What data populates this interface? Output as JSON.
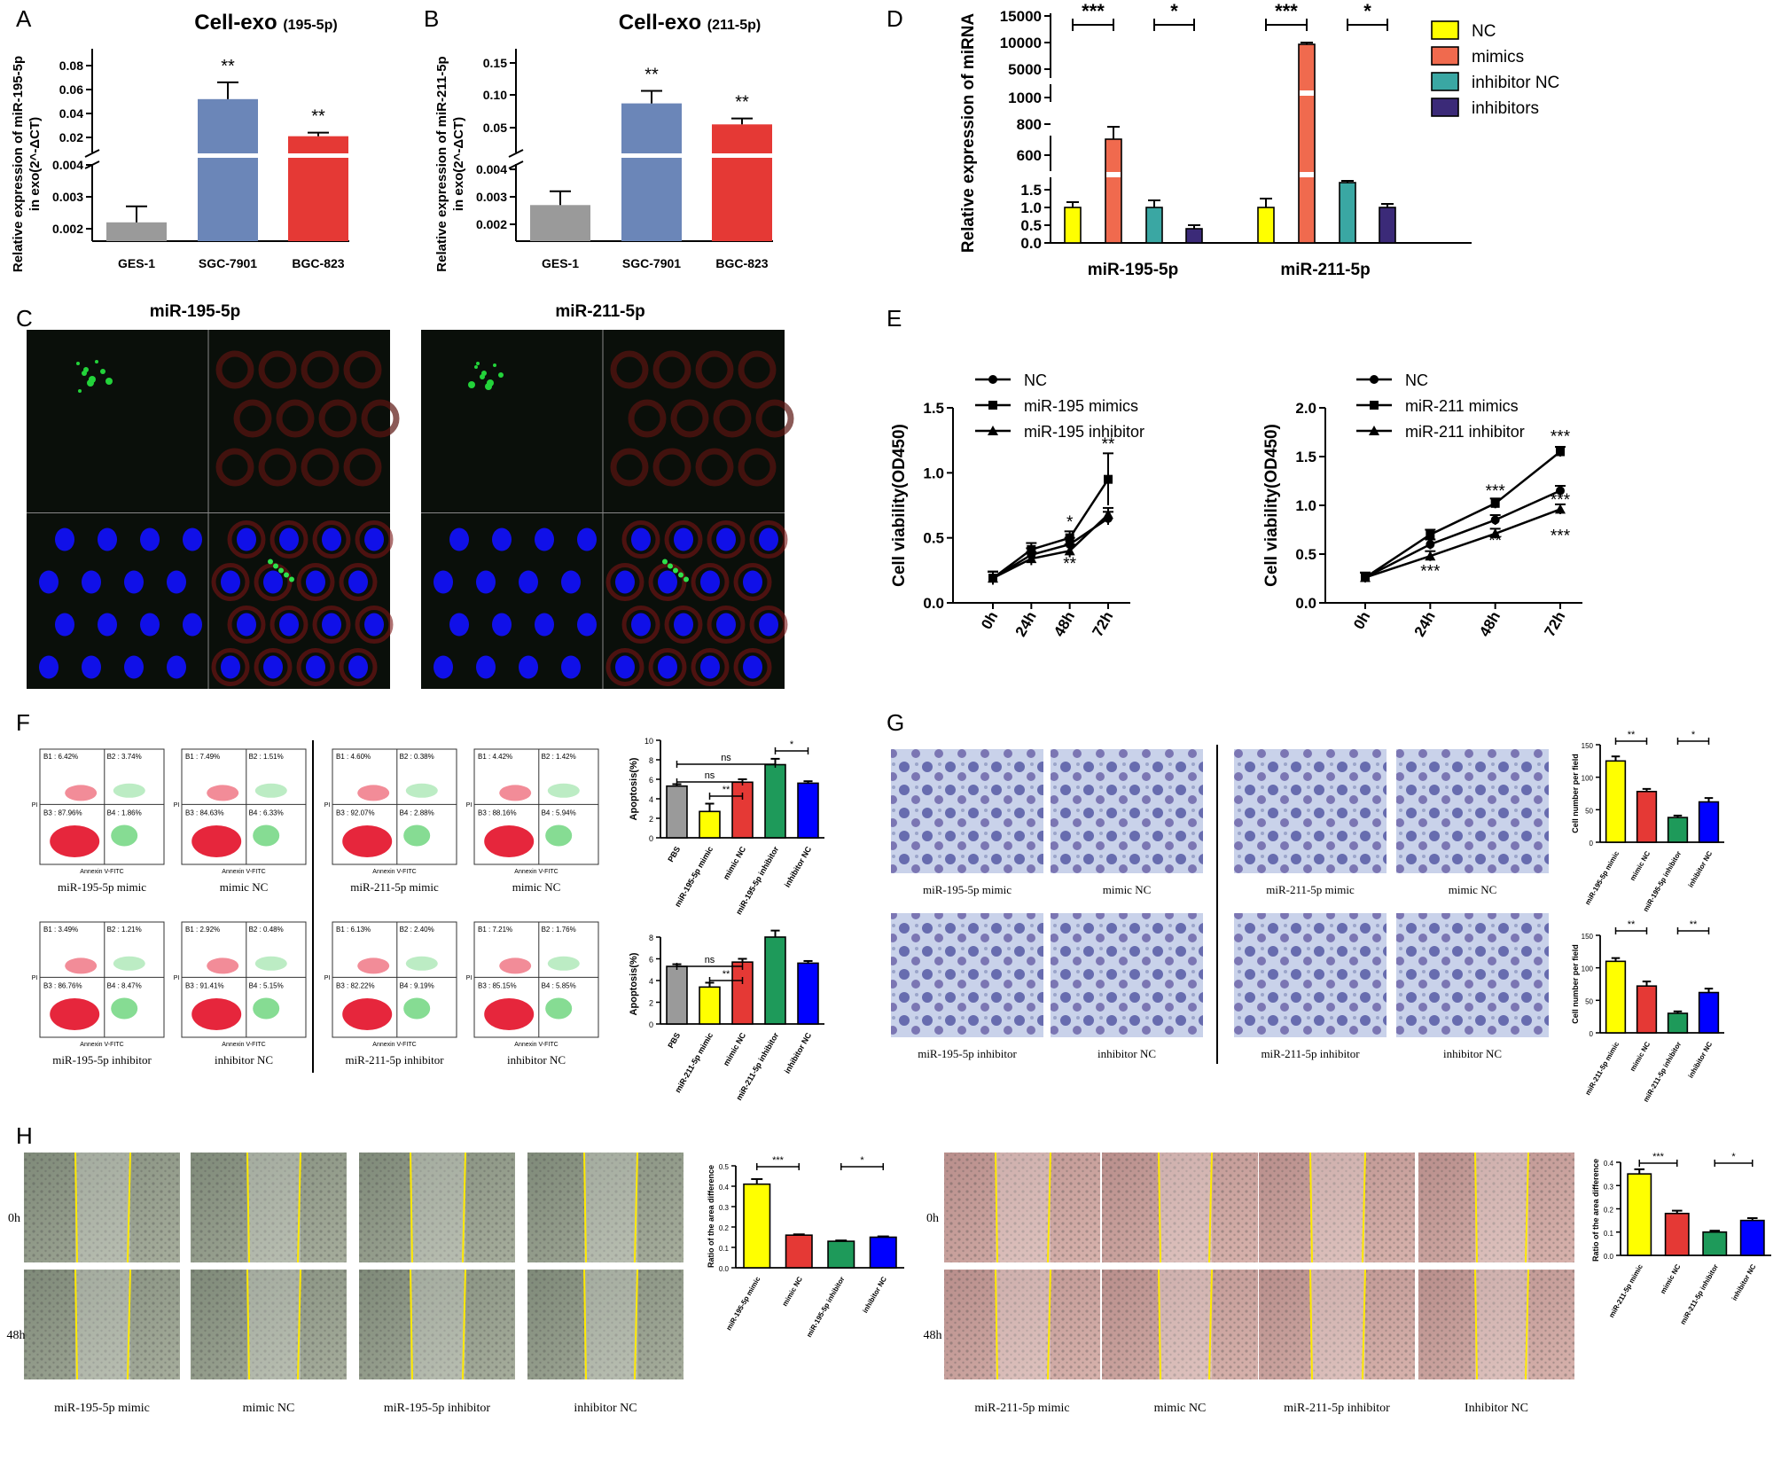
{
  "panels": {
    "A": {
      "letter": "A",
      "title": "Cell-exo",
      "subtitle": "(195-5p)",
      "ylabel1": "Relative expression  of miR-195-5p",
      "ylabel2": "in exo(2^-ΔCT)",
      "sig": [
        "**",
        "**"
      ]
    },
    "B": {
      "letter": "B",
      "title": "Cell-exo",
      "subtitle": "(211-5p)",
      "ylabel1": "Relative expression  of miR-211-5p",
      "ylabel2": "in exo(2^-ΔCT)",
      "sig": [
        "**",
        "**"
      ]
    },
    "C": {
      "letter": "C",
      "label_left": "miR-195-5p",
      "label_right": "miR-211-5p"
    },
    "D": {
      "letter": "D",
      "ylabel": "Relative expression  of miRNA",
      "groups": [
        "miR-195-5p",
        "miR-211-5p"
      ],
      "legend": [
        "NC",
        "mimics",
        "inhibitor NC",
        "inhibitors"
      ],
      "sig": [
        "***",
        "*",
        "***",
        "*"
      ]
    },
    "E": {
      "letter": "E",
      "ylabel": "Cell viability(OD450)",
      "left_legend": [
        "NC",
        "miR-195 mimics",
        "miR-195 inhibitor"
      ],
      "right_legend": [
        "NC",
        "miR-211 mimics",
        "miR-211 inhibitor"
      ],
      "left_sig": [
        "*",
        "**",
        "**"
      ],
      "right_sig": [
        "***",
        "***",
        "***",
        "**",
        "***",
        "***"
      ]
    },
    "F": {
      "letter": "F",
      "ylabel": "Apoptosis(%)",
      "cats_top": [
        "PBS",
        "miR-195-5p mimic",
        "mimic NC",
        "miR-195-5p inhibitor",
        "inhibitor NC"
      ],
      "cats_bottom": [
        "PBS",
        "miR-211-5p mimic",
        "mimic NC",
        "miR-211-5p inhibitor",
        "inhibitor NC"
      ],
      "sig_top": [
        "ns",
        "ns",
        "**",
        "*"
      ],
      "sig_bottom": [
        "ns",
        "**"
      ],
      "flow_captions": [
        "miR-195-5p mimic",
        "mimic NC",
        "miR-211-5p mimic",
        "mimic NC",
        "miR-195-5p inhibitor",
        "inhibitor NC",
        "miR-211-5p inhibitor",
        "inhibitor NC"
      ],
      "quads": [
        [
          "B1 : 6.42%",
          "B2 : 3.74%",
          "B3 : 87.96%",
          "B4 : 1.86%"
        ],
        [
          "B1 : 7.49%",
          "B2 : 1.51%",
          "B3 : 84.63%",
          "B4 : 6.33%"
        ],
        [
          "B1 : 4.60%",
          "B2 : 0.38%",
          "B3 : 92.07%",
          "B4 : 2.88%"
        ],
        [
          "B1 : 4.42%",
          "B2 : 1.42%",
          "B3 : 88.16%",
          "B4 : 5.94%"
        ],
        [
          "B1 : 3.49%",
          "B2 : 1.21%",
          "B3 : 86.76%",
          "B4 : 8.47%"
        ],
        [
          "B1 : 2.92%",
          "B2 : 0.48%",
          "B3 : 91.41%",
          "B4 : 5.15%"
        ],
        [
          "B1 : 6.13%",
          "B2 : 2.40%",
          "B3 : 82.22%",
          "B4 : 9.19%"
        ],
        [
          "B1 : 7.21%",
          "B2 : 1.76%",
          "B3 : 85.15%",
          "B4 : 5.85%"
        ]
      ],
      "axis_x": "Annexin V-FITC",
      "axis_y": "PI"
    },
    "G": {
      "letter": "G",
      "ylabel": "Cell number per field",
      "captions": [
        "miR-195-5p mimic",
        "mimic NC",
        "miR-211-5p mimic",
        "mimic NC",
        "miR-195-5p inhibitor",
        "inhibitor NC",
        "miR-211-5p inhibitor",
        "inhibitor NC"
      ],
      "cats_top": [
        "miR-195-5p mimic",
        "mimic NC",
        "miR-195-5p inhibitor",
        "inhibitor NC"
      ],
      "cats_bottom": [
        "miR-211-5p mimic",
        "mimic NC",
        "miR-211-5p inhibitor",
        "inhibitor NC"
      ],
      "sig_top": [
        "**",
        "*"
      ],
      "sig_bottom": [
        "**",
        "**"
      ]
    },
    "H": {
      "letter": "H",
      "ylabel": "Ratio of the area difference",
      "row_labels": [
        "0h",
        "48h"
      ],
      "captions_left": [
        "miR-195-5p mimic",
        "mimic NC",
        "miR-195-5p inhibitor",
        "inhibitor NC"
      ],
      "captions_right": [
        "miR-211-5p mimic",
        "mimic NC",
        "miR-211-5p inhibitor",
        "Inhibitor NC"
      ],
      "cats_left": [
        "miR-195-5p mimic",
        "mimic NC",
        "miR-195-5p inhibitor",
        "inhibitor NC"
      ],
      "cats_right": [
        "miR-211-5p mimic",
        "mimic NC",
        "miR-211-5p inhibitor",
        "inhibitor NC"
      ],
      "sig_left": [
        "***",
        "*"
      ],
      "sig_right": [
        "***",
        "*"
      ]
    }
  },
  "colors": {
    "gray": "#9a9a9a",
    "blue": "#6b86b8",
    "red": "#e53935",
    "yellow": "#ffff00",
    "salmon": "#f06a4e",
    "teal": "#3aa7a3",
    "purple": "#3b2a78",
    "green": "#1e9a5a",
    "pureblue": "#0000ff"
  },
  "chart_data": [
    {
      "id": "A",
      "type": "bar",
      "categories": [
        "GES-1",
        "SGC-7901",
        "BGC-823"
      ],
      "values": [
        0.0022,
        0.052,
        0.021
      ],
      "errors": [
        0.0005,
        0.014,
        0.003
      ],
      "yticks": [
        "0.002",
        "0.003",
        "0.004",
        "0.02",
        "0.04",
        "0.06",
        "0.08"
      ],
      "broken_axis": true
    },
    {
      "id": "B",
      "type": "bar",
      "categories": [
        "GES-1",
        "SGC-7901",
        "BGC-823"
      ],
      "values": [
        0.0027,
        0.087,
        0.055
      ],
      "errors": [
        0.0005,
        0.019,
        0.009
      ],
      "yticks": [
        "0.002",
        "0.003",
        "0.004",
        "0.05",
        "0.10",
        "0.15"
      ],
      "broken_axis": true
    },
    {
      "id": "D",
      "type": "bar",
      "categories": [
        "miR-195-5p",
        "miR-211-5p"
      ],
      "series": [
        {
          "name": "NC",
          "values": [
            1.0,
            1.0
          ]
        },
        {
          "name": "mimics",
          "values": [
            700,
            9800
          ]
        },
        {
          "name": "inhibitor NC",
          "values": [
            1.0,
            1.7
          ]
        },
        {
          "name": "inhibitors",
          "values": [
            0.4,
            1.0
          ]
        }
      ],
      "yticks": [
        "0.0",
        "0.5",
        "1.0",
        "1.5",
        "600",
        "800",
        "1000",
        "5000",
        "10000",
        "15000"
      ],
      "broken_axis": true
    },
    {
      "id": "E-left",
      "type": "line",
      "x": [
        "0h",
        "24h",
        "48h",
        "72h"
      ],
      "series": [
        {
          "name": "NC",
          "values": [
            0.19,
            0.37,
            0.45,
            0.65
          ]
        },
        {
          "name": "miR-195 mimics",
          "values": [
            0.19,
            0.41,
            0.5,
            0.95
          ]
        },
        {
          "name": "miR-195 inhibitor",
          "values": [
            0.19,
            0.34,
            0.4,
            0.68
          ]
        }
      ],
      "ylim": [
        0,
        1.5
      ],
      "yticks": [
        "0.0",
        "0.5",
        "1.0",
        "1.5"
      ]
    },
    {
      "id": "E-right",
      "type": "line",
      "x": [
        "0h",
        "24h",
        "48h",
        "72h"
      ],
      "series": [
        {
          "name": "NC",
          "values": [
            0.26,
            0.6,
            0.85,
            1.15
          ]
        },
        {
          "name": "miR-211 mimics",
          "values": [
            0.26,
            0.7,
            1.02,
            1.55
          ]
        },
        {
          "name": "miR-211 inhibitor",
          "values": [
            0.26,
            0.48,
            0.71,
            0.96
          ]
        }
      ],
      "ylim": [
        0,
        2.0
      ],
      "yticks": [
        "0.0",
        "0.5",
        "1.0",
        "1.5",
        "2.0"
      ]
    },
    {
      "id": "F-top",
      "type": "bar",
      "categories": [
        "PBS",
        "miR-195-5p mimic",
        "mimic NC",
        "miR-195-5p inhibitor",
        "inhibitor NC"
      ],
      "values": [
        5.3,
        2.7,
        5.7,
        7.5,
        5.6
      ],
      "errors": [
        0.2,
        0.8,
        0.3,
        0.6,
        0.2
      ],
      "ylim": [
        0,
        10
      ],
      "yticks": [
        "0",
        "2",
        "4",
        "6",
        "8",
        "10"
      ]
    },
    {
      "id": "F-bottom",
      "type": "bar",
      "categories": [
        "PBS",
        "miR-211-5p mimic",
        "mimic NC",
        "miR-211-5p inhibitor",
        "inhibitor NC"
      ],
      "values": [
        5.3,
        3.4,
        5.7,
        8.0,
        5.6
      ],
      "errors": [
        0.2,
        0.4,
        0.3,
        0.6,
        0.2
      ],
      "ylim": [
        0,
        8
      ],
      "yticks": [
        "0",
        "2",
        "4",
        "6",
        "8"
      ]
    },
    {
      "id": "G-top",
      "type": "bar",
      "categories": [
        "miR-195-5p mimic",
        "mimic NC",
        "miR-195-5p inhibitor",
        "inhibitor NC"
      ],
      "values": [
        125,
        78,
        38,
        62
      ],
      "errors": [
        7,
        4,
        3,
        6
      ],
      "ylim": [
        0,
        150
      ],
      "yticks": [
        "0",
        "50",
        "100",
        "150"
      ]
    },
    {
      "id": "G-bottom",
      "type": "bar",
      "categories": [
        "miR-211-5p mimic",
        "mimic NC",
        "miR-211-5p inhibitor",
        "inhibitor NC"
      ],
      "values": [
        110,
        72,
        30,
        62
      ],
      "errors": [
        5,
        7,
        3,
        6
      ],
      "ylim": [
        0,
        150
      ],
      "yticks": [
        "0",
        "50",
        "100",
        "150"
      ]
    },
    {
      "id": "H-left",
      "type": "bar",
      "categories": [
        "miR-195-5p mimic",
        "mimic NC",
        "miR-195-5p inhibitor",
        "inhibitor NC"
      ],
      "values": [
        0.41,
        0.16,
        0.13,
        0.15
      ],
      "errors": [
        0.025,
        0.004,
        0.004,
        0.004
      ],
      "ylim": [
        0,
        0.5
      ],
      "yticks": [
        "0.0",
        "0.1",
        "0.2",
        "0.3",
        "0.4",
        "0.5"
      ]
    },
    {
      "id": "H-right",
      "type": "bar",
      "categories": [
        "miR-211-5p mimic",
        "mimic NC",
        "miR-211-5p inhibitor",
        "inhibitor NC"
      ],
      "values": [
        0.35,
        0.18,
        0.1,
        0.15
      ],
      "errors": [
        0.02,
        0.012,
        0.006,
        0.01
      ],
      "ylim": [
        0,
        0.4
      ],
      "yticks": [
        "0.0",
        "0.1",
        "0.2",
        "0.3",
        "0.4"
      ]
    }
  ]
}
